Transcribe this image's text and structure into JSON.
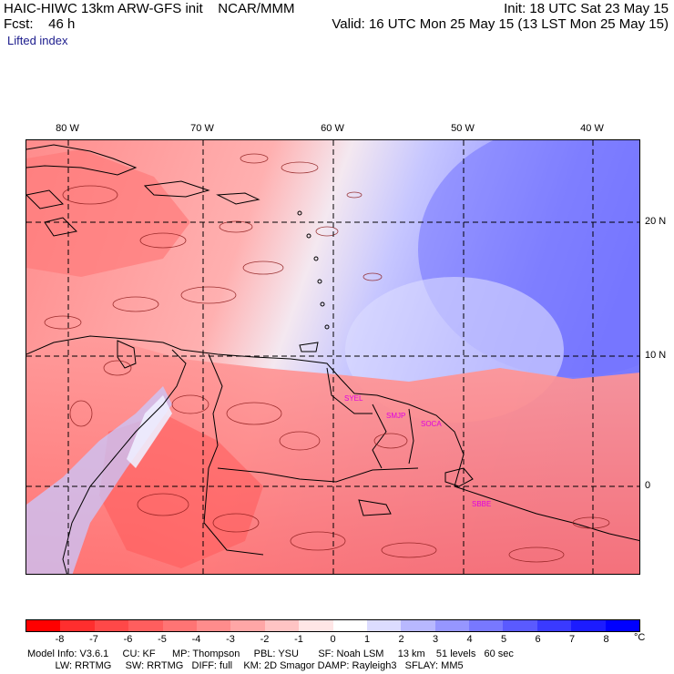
{
  "header": {
    "left_line1": "HAIC-HIWC 13km ARW-GFS init    NCAR/MMM",
    "right_line1": "Init: 18 UTC Sat 23 May 15",
    "left_line2": "Fcst:    46 h",
    "right_line2": "Valid: 16 UTC Mon 25 May 15 (13 LST Mon 25 May 15)",
    "field": "Lifted index"
  },
  "longitude_labels": [
    "80 W",
    "70 W",
    "60 W",
    "50 W",
    "40 W"
  ],
  "latitude_labels": [
    "20 N",
    "10 N",
    "0"
  ],
  "stations": [
    "SYEL",
    "SMJP",
    "SOCA",
    "SBBE"
  ],
  "colorbar": {
    "labels": [
      "-8",
      "-7",
      "-6",
      "-5",
      "-4",
      "-3",
      "-2",
      "-1",
      "0",
      "1",
      "2",
      "3",
      "4",
      "5",
      "6",
      "7",
      "8"
    ],
    "unit": "°C",
    "colors": [
      "#ff0000",
      "#ff2e2e",
      "#ff4848",
      "#ff5e5e",
      "#ff7474",
      "#ff8c8c",
      "#ffa6a6",
      "#ffc4c4",
      "#ffe6e6",
      "#ffffff",
      "#dcdcff",
      "#b8b8ff",
      "#9696ff",
      "#7878ff",
      "#5a5aff",
      "#3a3aff",
      "#1c1cff",
      "#0000ff"
    ]
  },
  "footer": {
    "line1": "Model Info: V3.6.1     CU: KF      MP: Thompson     PBL: YSU       SF: Noah LSM     13 km    51 levels   60 sec",
    "line2": "          LW: RRTMG     SW: RRTMG   DIFF: full    KM: 2D Smagor DAMP: Rayleigh3   SFLAY: MM5"
  }
}
